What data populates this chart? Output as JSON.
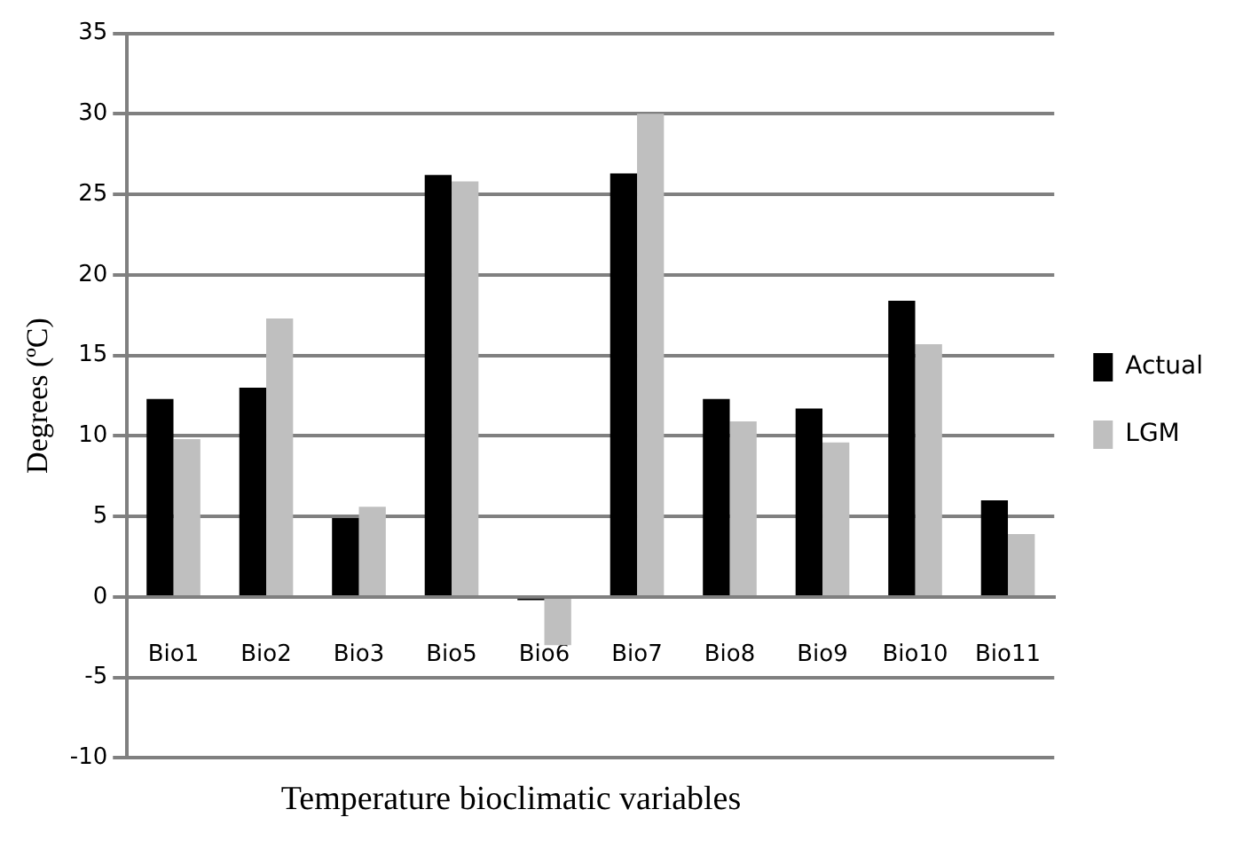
{
  "chart_data": {
    "type": "bar",
    "xlabel": "Temperature bioclimatic variables",
    "ylabel": "Degrees (ºC)",
    "categories": [
      "Bio1",
      "Bio2",
      "Bio3",
      "Bio5",
      "Bio6",
      "Bio7",
      "Bio8",
      "Bio9",
      "Bio10",
      "Bio11"
    ],
    "series": [
      {
        "name": "Actual",
        "color": "#000000",
        "values": [
          12.3,
          13.0,
          4.9,
          26.2,
          -0.2,
          26.3,
          12.3,
          11.7,
          18.4,
          6.0
        ]
      },
      {
        "name": "LGM",
        "color": "#bfbfbf",
        "values": [
          9.8,
          17.3,
          5.6,
          25.8,
          -3,
          30.0,
          10.9,
          9.6,
          15.7,
          3.9
        ]
      }
    ],
    "ylim": [
      -10,
      35
    ],
    "yticks": [
      -10,
      -5,
      0,
      5,
      10,
      15,
      20,
      25,
      30,
      35
    ],
    "grid": "y",
    "legend": "right"
  }
}
